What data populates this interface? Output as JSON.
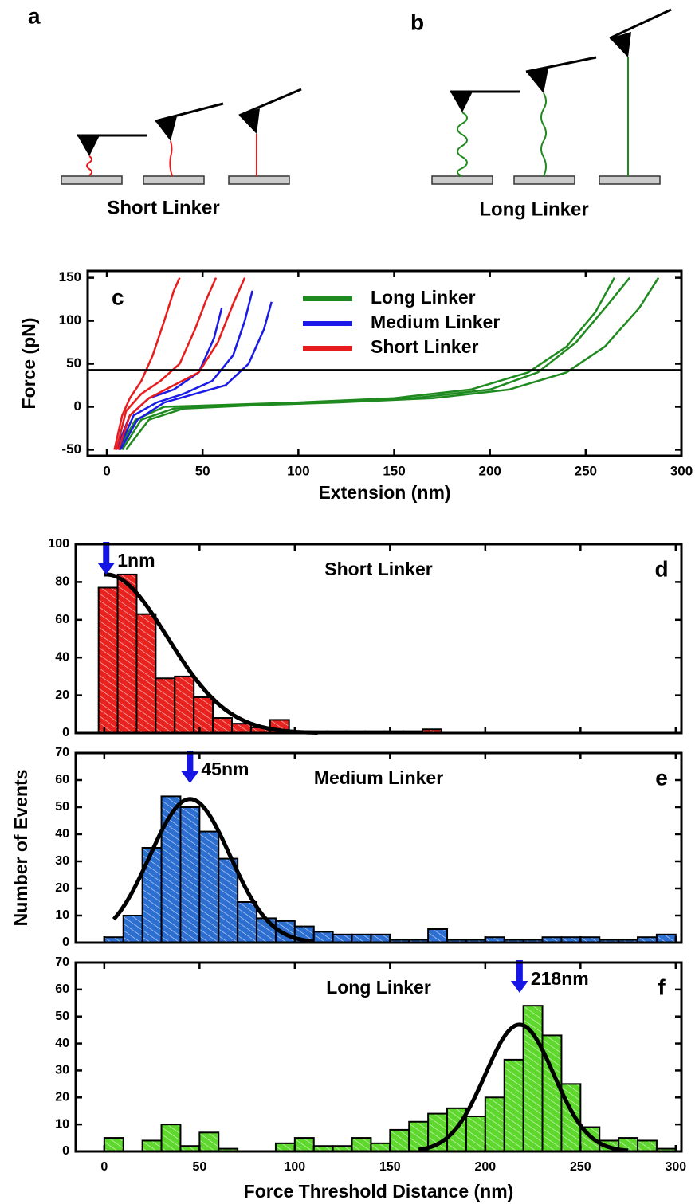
{
  "schematic": [
    {
      "label": "a",
      "caption": "Short Linker"
    },
    {
      "label": "b",
      "caption": "Long Linker"
    }
  ],
  "chart_data": [
    {
      "type": "line",
      "label": "c",
      "xlabel": "Extension (nm)",
      "ylabel": "Force (pN)",
      "xlim": [
        -10,
        300
      ],
      "ylim": [
        -57,
        158
      ],
      "xticks": [
        0,
        50,
        100,
        150,
        200,
        250,
        300
      ],
      "yticks": [
        -50,
        0,
        50,
        100,
        150
      ],
      "threshold": 43,
      "legend": "upper-center",
      "series": [
        {
          "name": "Long Linker",
          "color": "#1f8a1f",
          "traces": [
            {
              "x": [
                6,
                15,
                30,
                60,
                100,
                150,
                190,
                220,
                240,
                255,
                265
              ],
              "values": [
                -50,
                -15,
                0,
                2,
                5,
                10,
                20,
                40,
                70,
                110,
                150
              ]
            },
            {
              "x": [
                8,
                18,
                35,
                70,
                110,
                160,
                200,
                225,
                245,
                262,
                273
              ],
              "values": [
                -50,
                -15,
                -2,
                2,
                5,
                10,
                20,
                40,
                75,
                120,
                150
              ]
            },
            {
              "x": [
                10,
                22,
                40,
                80,
                120,
                170,
                210,
                240,
                260,
                278,
                288
              ],
              "values": [
                -50,
                -15,
                -2,
                2,
                5,
                10,
                20,
                40,
                70,
                115,
                150
              ]
            }
          ]
        },
        {
          "name": "Medium Linker",
          "color": "#1a1ae6",
          "traces": [
            {
              "x": [
                5,
                12,
                22,
                35,
                48,
                56,
                60
              ],
              "values": [
                -50,
                -10,
                10,
                20,
                40,
                80,
                115
              ]
            },
            {
              "x": [
                6,
                14,
                26,
                40,
                55,
                66,
                72,
                76
              ],
              "values": [
                -50,
                -10,
                5,
                15,
                30,
                60,
                100,
                135
              ]
            },
            {
              "x": [
                7,
                16,
                30,
                46,
                62,
                74,
                82,
                86
              ],
              "values": [
                -50,
                -15,
                5,
                15,
                25,
                50,
                90,
                122
              ]
            }
          ]
        },
        {
          "name": "Short Linker",
          "color": "#e81c1c",
          "traces": [
            {
              "x": [
                4,
                8,
                12,
                18,
                24,
                30,
                35,
                38
              ],
              "values": [
                -50,
                -10,
                10,
                30,
                60,
                100,
                135,
                150
              ]
            },
            {
              "x": [
                5,
                10,
                18,
                28,
                38,
                46,
                52,
                57
              ],
              "values": [
                -50,
                -5,
                15,
                30,
                50,
                90,
                125,
                150
              ]
            },
            {
              "x": [
                6,
                12,
                22,
                35,
                48,
                58,
                66,
                72
              ],
              "values": [
                -50,
                -10,
                10,
                25,
                40,
                75,
                120,
                150
              ]
            }
          ]
        }
      ]
    },
    {
      "type": "histogram",
      "label": "d",
      "title": "Short Linker",
      "color": "#e8231f",
      "xlim": [
        -15,
        303
      ],
      "xticks": [
        0,
        50,
        100,
        150,
        200,
        250,
        300
      ],
      "xtick_labels": false,
      "ylim": [
        0,
        100
      ],
      "yticks": [
        0,
        20,
        40,
        60,
        80,
        100
      ],
      "bins": [
        -3,
        7,
        17,
        27,
        37,
        47,
        57,
        67,
        77,
        87,
        97,
        107,
        117,
        127,
        137,
        147,
        157,
        167,
        177
      ],
      "values": [
        77,
        84,
        63,
        29,
        30,
        19,
        8,
        5,
        3,
        7,
        1,
        1,
        1,
        1,
        1,
        1,
        1,
        2
      ],
      "fit": {
        "center": 1,
        "amplitude": 84,
        "sigma": 32,
        "range": [
          0,
          112
        ]
      },
      "annotation": "1nm"
    },
    {
      "type": "histogram",
      "label": "e",
      "title": "Medium Linker",
      "color": "#2d6fd1",
      "ylabel": "Number of Events",
      "xlim": [
        -15,
        303
      ],
      "xticks": [
        0,
        50,
        100,
        150,
        200,
        250,
        300
      ],
      "xtick_labels": false,
      "ylim": [
        0,
        70
      ],
      "yticks": [
        0,
        10,
        20,
        30,
        40,
        50,
        60,
        70
      ],
      "bins": [
        0,
        10,
        20,
        30,
        40,
        50,
        60,
        70,
        80,
        90,
        100,
        110,
        120,
        130,
        140,
        150,
        160,
        170,
        180,
        190,
        200,
        210,
        220,
        230,
        240,
        250,
        260,
        270,
        280,
        290,
        300
      ],
      "values": [
        2,
        10,
        35,
        54,
        50,
        41,
        31,
        15,
        9,
        8,
        6,
        4,
        3,
        3,
        3,
        1,
        1,
        5,
        1,
        1,
        2,
        1,
        1,
        2,
        2,
        2,
        1,
        1,
        2,
        3
      ],
      "fit": {
        "center": 45,
        "amplitude": 53,
        "sigma": 21,
        "range": [
          5,
          110
        ]
      },
      "annotation": "45nm"
    },
    {
      "type": "histogram",
      "label": "f",
      "title": "Long Linker",
      "color": "#5fd82e",
      "xlabel": "Force Threshold Distance (nm)",
      "xlim": [
        -15,
        303
      ],
      "xticks": [
        0,
        50,
        100,
        150,
        200,
        250,
        300
      ],
      "xtick_labels": true,
      "ylim": [
        0,
        70
      ],
      "yticks": [
        0,
        10,
        20,
        30,
        40,
        50,
        60,
        70
      ],
      "bins": [
        0,
        10,
        20,
        30,
        40,
        50,
        60,
        70,
        80,
        90,
        100,
        110,
        120,
        130,
        140,
        150,
        160,
        170,
        180,
        190,
        200,
        210,
        220,
        230,
        240,
        250,
        260,
        270,
        280,
        290,
        300
      ],
      "values": [
        5,
        0,
        4,
        10,
        2,
        7,
        1,
        0,
        0,
        3,
        5,
        2,
        2,
        5,
        3,
        8,
        11,
        14,
        16,
        13,
        20,
        34,
        54,
        43,
        25,
        9,
        4,
        5,
        4,
        1
      ],
      "fit": {
        "center": 218,
        "amplitude": 47,
        "sigma": 18,
        "range": [
          165,
          275
        ]
      },
      "annotation": "218nm"
    }
  ]
}
